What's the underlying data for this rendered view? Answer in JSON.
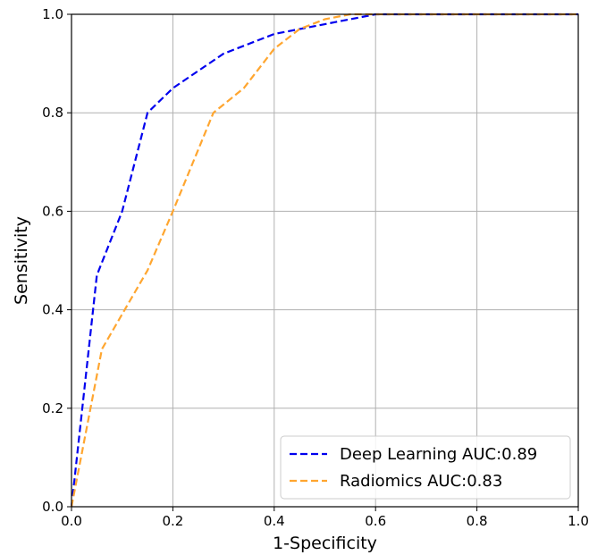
{
  "chart_data": {
    "type": "line",
    "title": "",
    "xlabel": "1-Specificity",
    "ylabel": "Sensitivity",
    "xlim": [
      0.0,
      1.0
    ],
    "ylim": [
      0.0,
      1.0
    ],
    "xticks": [
      "0.0",
      "0.2",
      "0.4",
      "0.6",
      "0.8",
      "1.0"
    ],
    "yticks": [
      "0.0",
      "0.2",
      "0.4",
      "0.6",
      "0.8",
      "1.0"
    ],
    "grid": true,
    "legend_position": "bottom-right",
    "series": [
      {
        "name": "Deep Learning AUC:0.89",
        "color": "#0000ee",
        "dash": "dashed",
        "x": [
          0.0,
          0.05,
          0.1,
          0.15,
          0.2,
          0.3,
          0.4,
          0.5,
          0.6,
          0.7,
          0.8,
          0.9,
          1.0
        ],
        "y": [
          0.0,
          0.47,
          0.6,
          0.8,
          0.85,
          0.92,
          0.96,
          0.98,
          1.0,
          1.0,
          1.0,
          1.0,
          1.0
        ]
      },
      {
        "name": "Radiomics AUC:0.83",
        "color": "#ffa630",
        "dash": "dashed",
        "x": [
          0.0,
          0.06,
          0.15,
          0.2,
          0.28,
          0.34,
          0.4,
          0.45,
          0.5,
          0.55,
          0.6,
          0.8,
          1.0
        ],
        "y": [
          0.0,
          0.32,
          0.48,
          0.6,
          0.8,
          0.85,
          0.93,
          0.97,
          0.99,
          1.0,
          1.0,
          1.0,
          1.0
        ]
      }
    ]
  }
}
